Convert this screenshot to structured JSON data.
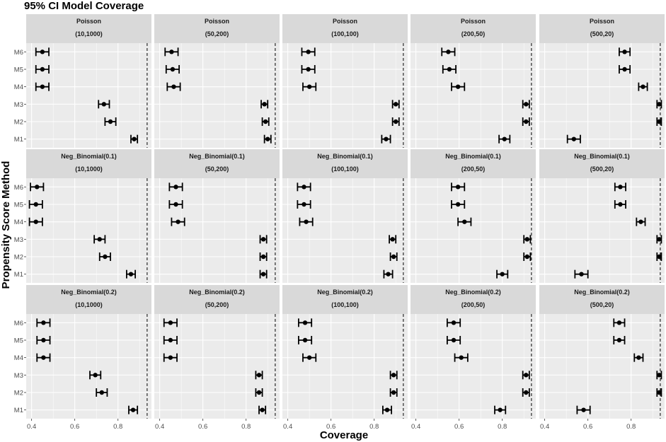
{
  "chart_data": {
    "type": "scatter",
    "title": "95% CI Model Coverage",
    "xlabel": "Coverage",
    "ylabel": "Propensity Score Method",
    "xlim": [
      0.375,
      0.955
    ],
    "x_ticks": [
      "0.4",
      "0.6",
      "0.8"
    ],
    "y_categories": [
      "M1",
      "M2",
      "M3",
      "M4",
      "M5",
      "M6"
    ],
    "reference_line": 0.935,
    "grid": true,
    "columns": [
      "(10,1000)",
      "(50,200)",
      "(100,100)",
      "(200,50)",
      "(500,20)"
    ],
    "rows": [
      {
        "name": "Poisson",
        "panels": [
          {
            "label": "(10,1000)",
            "points": [
              {
                "method": "M6",
                "estimate": 0.45,
                "lower": 0.42,
                "upper": 0.48
              },
              {
                "method": "M5",
                "estimate": 0.45,
                "lower": 0.42,
                "upper": 0.48
              },
              {
                "method": "M4",
                "estimate": 0.45,
                "lower": 0.42,
                "upper": 0.48
              },
              {
                "method": "M3",
                "estimate": 0.735,
                "lower": 0.71,
                "upper": 0.76
              },
              {
                "method": "M2",
                "estimate": 0.765,
                "lower": 0.74,
                "upper": 0.79
              },
              {
                "method": "M1",
                "estimate": 0.875,
                "lower": 0.86,
                "upper": 0.89
              }
            ]
          },
          {
            "label": "(50,200)",
            "points": [
              {
                "method": "M6",
                "estimate": 0.455,
                "lower": 0.425,
                "upper": 0.485
              },
              {
                "method": "M5",
                "estimate": 0.46,
                "lower": 0.43,
                "upper": 0.49
              },
              {
                "method": "M4",
                "estimate": 0.465,
                "lower": 0.435,
                "upper": 0.495
              },
              {
                "method": "M3",
                "estimate": 0.885,
                "lower": 0.87,
                "upper": 0.9
              },
              {
                "method": "M2",
                "estimate": 0.89,
                "lower": 0.875,
                "upper": 0.905
              },
              {
                "method": "M1",
                "estimate": 0.9,
                "lower": 0.885,
                "upper": 0.915
              }
            ]
          },
          {
            "label": "(100,100)",
            "points": [
              {
                "method": "M6",
                "estimate": 0.495,
                "lower": 0.465,
                "upper": 0.525
              },
              {
                "method": "M5",
                "estimate": 0.495,
                "lower": 0.465,
                "upper": 0.525
              },
              {
                "method": "M4",
                "estimate": 0.5,
                "lower": 0.47,
                "upper": 0.53
              },
              {
                "method": "M3",
                "estimate": 0.9,
                "lower": 0.885,
                "upper": 0.915
              },
              {
                "method": "M2",
                "estimate": 0.9,
                "lower": 0.885,
                "upper": 0.915
              },
              {
                "method": "M1",
                "estimate": 0.855,
                "lower": 0.835,
                "upper": 0.875
              }
            ]
          },
          {
            "label": "(200,50)",
            "points": [
              {
                "method": "M6",
                "estimate": 0.55,
                "lower": 0.52,
                "upper": 0.58
              },
              {
                "method": "M5",
                "estimate": 0.555,
                "lower": 0.525,
                "upper": 0.585
              },
              {
                "method": "M4",
                "estimate": 0.595,
                "lower": 0.565,
                "upper": 0.625
              },
              {
                "method": "M3",
                "estimate": 0.91,
                "lower": 0.895,
                "upper": 0.925
              },
              {
                "method": "M2",
                "estimate": 0.91,
                "lower": 0.895,
                "upper": 0.925
              },
              {
                "method": "M1",
                "estimate": 0.81,
                "lower": 0.785,
                "upper": 0.835
              }
            ]
          },
          {
            "label": "(500,20)",
            "points": [
              {
                "method": "M6",
                "estimate": 0.77,
                "lower": 0.745,
                "upper": 0.795
              },
              {
                "method": "M5",
                "estimate": 0.77,
                "lower": 0.745,
                "upper": 0.795
              },
              {
                "method": "M4",
                "estimate": 0.855,
                "lower": 0.835,
                "upper": 0.875
              },
              {
                "method": "M3",
                "estimate": 0.93,
                "lower": 0.92,
                "upper": 0.94
              },
              {
                "method": "M2",
                "estimate": 0.93,
                "lower": 0.92,
                "upper": 0.94
              },
              {
                "method": "M1",
                "estimate": 0.535,
                "lower": 0.505,
                "upper": 0.565
              }
            ]
          }
        ]
      },
      {
        "name": "Neg_Binomial(0.1)",
        "panels": [
          {
            "label": "(10,1000)",
            "points": [
              {
                "method": "M6",
                "estimate": 0.425,
                "lower": 0.395,
                "upper": 0.455
              },
              {
                "method": "M5",
                "estimate": 0.42,
                "lower": 0.39,
                "upper": 0.45
              },
              {
                "method": "M4",
                "estimate": 0.42,
                "lower": 0.39,
                "upper": 0.45
              },
              {
                "method": "M3",
                "estimate": 0.715,
                "lower": 0.69,
                "upper": 0.74
              },
              {
                "method": "M2",
                "estimate": 0.74,
                "lower": 0.715,
                "upper": 0.765
              },
              {
                "method": "M1",
                "estimate": 0.86,
                "lower": 0.84,
                "upper": 0.88
              }
            ]
          },
          {
            "label": "(50,200)",
            "points": [
              {
                "method": "M6",
                "estimate": 0.475,
                "lower": 0.445,
                "upper": 0.505
              },
              {
                "method": "M5",
                "estimate": 0.475,
                "lower": 0.445,
                "upper": 0.505
              },
              {
                "method": "M4",
                "estimate": 0.485,
                "lower": 0.455,
                "upper": 0.515
              },
              {
                "method": "M3",
                "estimate": 0.88,
                "lower": 0.865,
                "upper": 0.895
              },
              {
                "method": "M2",
                "estimate": 0.88,
                "lower": 0.865,
                "upper": 0.895
              },
              {
                "method": "M1",
                "estimate": 0.88,
                "lower": 0.865,
                "upper": 0.895
              }
            ]
          },
          {
            "label": "(100,100)",
            "points": [
              {
                "method": "M6",
                "estimate": 0.475,
                "lower": 0.445,
                "upper": 0.505
              },
              {
                "method": "M5",
                "estimate": 0.475,
                "lower": 0.445,
                "upper": 0.505
              },
              {
                "method": "M4",
                "estimate": 0.485,
                "lower": 0.455,
                "upper": 0.515
              },
              {
                "method": "M3",
                "estimate": 0.885,
                "lower": 0.87,
                "upper": 0.9
              },
              {
                "method": "M2",
                "estimate": 0.89,
                "lower": 0.875,
                "upper": 0.905
              },
              {
                "method": "M1",
                "estimate": 0.865,
                "lower": 0.845,
                "upper": 0.885
              }
            ]
          },
          {
            "label": "(200,50)",
            "points": [
              {
                "method": "M6",
                "estimate": 0.595,
                "lower": 0.565,
                "upper": 0.625
              },
              {
                "method": "M5",
                "estimate": 0.595,
                "lower": 0.565,
                "upper": 0.625
              },
              {
                "method": "M4",
                "estimate": 0.625,
                "lower": 0.595,
                "upper": 0.655
              },
              {
                "method": "M3",
                "estimate": 0.915,
                "lower": 0.9,
                "upper": 0.93
              },
              {
                "method": "M2",
                "estimate": 0.915,
                "lower": 0.9,
                "upper": 0.93
              },
              {
                "method": "M1",
                "estimate": 0.8,
                "lower": 0.775,
                "upper": 0.825
              }
            ]
          },
          {
            "label": "(500,20)",
            "points": [
              {
                "method": "M6",
                "estimate": 0.75,
                "lower": 0.725,
                "upper": 0.775
              },
              {
                "method": "M5",
                "estimate": 0.75,
                "lower": 0.725,
                "upper": 0.775
              },
              {
                "method": "M4",
                "estimate": 0.845,
                "lower": 0.825,
                "upper": 0.865
              },
              {
                "method": "M3",
                "estimate": 0.93,
                "lower": 0.92,
                "upper": 0.94
              },
              {
                "method": "M2",
                "estimate": 0.93,
                "lower": 0.92,
                "upper": 0.94
              },
              {
                "method": "M1",
                "estimate": 0.57,
                "lower": 0.54,
                "upper": 0.6
              }
            ]
          }
        ]
      },
      {
        "name": "Neg_Binomial(0.2)",
        "panels": [
          {
            "label": "(10,1000)",
            "points": [
              {
                "method": "M6",
                "estimate": 0.455,
                "lower": 0.425,
                "upper": 0.485
              },
              {
                "method": "M5",
                "estimate": 0.455,
                "lower": 0.425,
                "upper": 0.485
              },
              {
                "method": "M4",
                "estimate": 0.455,
                "lower": 0.425,
                "upper": 0.485
              },
              {
                "method": "M3",
                "estimate": 0.695,
                "lower": 0.67,
                "upper": 0.72
              },
              {
                "method": "M2",
                "estimate": 0.725,
                "lower": 0.7,
                "upper": 0.75
              },
              {
                "method": "M1",
                "estimate": 0.87,
                "lower": 0.85,
                "upper": 0.89
              }
            ]
          },
          {
            "label": "(50,200)",
            "points": [
              {
                "method": "M6",
                "estimate": 0.45,
                "lower": 0.42,
                "upper": 0.48
              },
              {
                "method": "M5",
                "estimate": 0.45,
                "lower": 0.42,
                "upper": 0.48
              },
              {
                "method": "M4",
                "estimate": 0.45,
                "lower": 0.42,
                "upper": 0.48
              },
              {
                "method": "M3",
                "estimate": 0.86,
                "lower": 0.845,
                "upper": 0.875
              },
              {
                "method": "M2",
                "estimate": 0.86,
                "lower": 0.845,
                "upper": 0.875
              },
              {
                "method": "M1",
                "estimate": 0.875,
                "lower": 0.86,
                "upper": 0.89
              }
            ]
          },
          {
            "label": "(100,100)",
            "points": [
              {
                "method": "M6",
                "estimate": 0.48,
                "lower": 0.45,
                "upper": 0.51
              },
              {
                "method": "M5",
                "estimate": 0.48,
                "lower": 0.45,
                "upper": 0.51
              },
              {
                "method": "M4",
                "estimate": 0.5,
                "lower": 0.47,
                "upper": 0.53
              },
              {
                "method": "M3",
                "estimate": 0.89,
                "lower": 0.875,
                "upper": 0.905
              },
              {
                "method": "M2",
                "estimate": 0.89,
                "lower": 0.875,
                "upper": 0.905
              },
              {
                "method": "M1",
                "estimate": 0.86,
                "lower": 0.84,
                "upper": 0.88
              }
            ]
          },
          {
            "label": "(200,50)",
            "points": [
              {
                "method": "M6",
                "estimate": 0.575,
                "lower": 0.545,
                "upper": 0.605
              },
              {
                "method": "M5",
                "estimate": 0.575,
                "lower": 0.545,
                "upper": 0.605
              },
              {
                "method": "M4",
                "estimate": 0.61,
                "lower": 0.58,
                "upper": 0.64
              },
              {
                "method": "M3",
                "estimate": 0.91,
                "lower": 0.895,
                "upper": 0.925
              },
              {
                "method": "M2",
                "estimate": 0.91,
                "lower": 0.895,
                "upper": 0.925
              },
              {
                "method": "M1",
                "estimate": 0.79,
                "lower": 0.765,
                "upper": 0.815
              }
            ]
          },
          {
            "label": "(500,20)",
            "points": [
              {
                "method": "M6",
                "estimate": 0.745,
                "lower": 0.72,
                "upper": 0.77
              },
              {
                "method": "M5",
                "estimate": 0.745,
                "lower": 0.72,
                "upper": 0.77
              },
              {
                "method": "M4",
                "estimate": 0.835,
                "lower": 0.815,
                "upper": 0.855
              },
              {
                "method": "M3",
                "estimate": 0.93,
                "lower": 0.92,
                "upper": 0.94
              },
              {
                "method": "M2",
                "estimate": 0.93,
                "lower": 0.92,
                "upper": 0.94
              },
              {
                "method": "M1",
                "estimate": 0.58,
                "lower": 0.55,
                "upper": 0.61
              }
            ]
          }
        ]
      }
    ]
  },
  "colors": {
    "panel_background": "#ebebeb",
    "strip_background": "#d9d9d9",
    "gridline": "#ffffff",
    "point": "#000000",
    "reference_line": "#000000"
  }
}
